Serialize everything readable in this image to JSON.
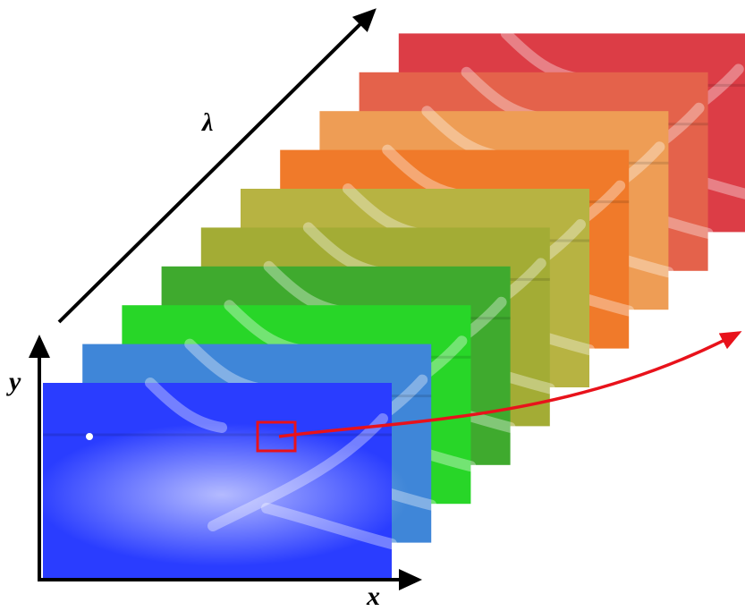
{
  "axes": {
    "x_label": "x",
    "y_label": "y",
    "lambda_label": "λ"
  },
  "frames": [
    {
      "name": "frame-violet",
      "tint": "#2a3dff"
    },
    {
      "name": "frame-blue",
      "tint": "#3f86d8"
    },
    {
      "name": "frame-green-bright",
      "tint": "#28d628"
    },
    {
      "name": "frame-green",
      "tint": "#3faa2e"
    },
    {
      "name": "frame-olive",
      "tint": "#a3ac35"
    },
    {
      "name": "frame-khaki",
      "tint": "#b7b342"
    },
    {
      "name": "frame-orange",
      "tint": "#f07a2a"
    },
    {
      "name": "frame-light-orange",
      "tint": "#ee9d55"
    },
    {
      "name": "frame-red-orange",
      "tint": "#e4624b"
    },
    {
      "name": "frame-red",
      "tint": "#dc3d46"
    }
  ],
  "colors": {
    "axis": "#000000",
    "highlight": "#e8121b"
  }
}
